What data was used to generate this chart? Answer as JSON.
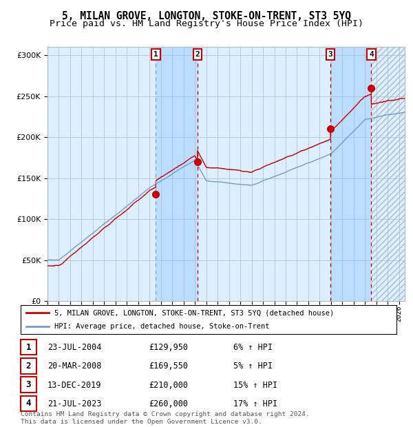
{
  "title": "5, MILAN GROVE, LONGTON, STOKE-ON-TRENT, ST3 5YQ",
  "subtitle": "Price paid vs. HM Land Registry's House Price Index (HPI)",
  "legend_line1": "5, MILAN GROVE, LONGTON, STOKE-ON-TRENT, ST3 5YQ (detached house)",
  "legend_line2": "HPI: Average price, detached house, Stoke-on-Trent",
  "transactions": [
    {
      "num": 1,
      "date": "23-JUL-2004",
      "price": 129950,
      "pct": "6%",
      "year": 2004.55
    },
    {
      "num": 2,
      "date": "20-MAR-2008",
      "price": 169550,
      "pct": "5%",
      "year": 2008.22
    },
    {
      "num": 3,
      "date": "13-DEC-2019",
      "price": 210000,
      "pct": "15%",
      "year": 2019.95
    },
    {
      "num": 4,
      "date": "21-JUL-2023",
      "price": 260000,
      "pct": "17%",
      "year": 2023.55
    }
  ],
  "footer": "Contains HM Land Registry data © Crown copyright and database right 2024.\nThis data is licensed under the Open Government Licence v3.0.",
  "ylim": [
    0,
    310000
  ],
  "xlim_start": 1995.0,
  "xlim_end": 2026.5,
  "line_color_red": "#cc0000",
  "line_color_blue": "#7799cc",
  "bg_color_main": "#ddeeff",
  "bg_color_shaded": "#bbddff",
  "grid_color": "#aabbcc",
  "dashed_vline_color": "#999999",
  "red_vline_color": "#cc0000",
  "title_fontsize": 10.5,
  "subtitle_fontsize": 9.5,
  "tick_years": [
    1995,
    1996,
    1997,
    1998,
    1999,
    2000,
    2001,
    2002,
    2003,
    2004,
    2005,
    2006,
    2007,
    2008,
    2009,
    2010,
    2011,
    2012,
    2013,
    2014,
    2015,
    2016,
    2017,
    2018,
    2019,
    2020,
    2021,
    2022,
    2023,
    2024,
    2025,
    2026
  ]
}
